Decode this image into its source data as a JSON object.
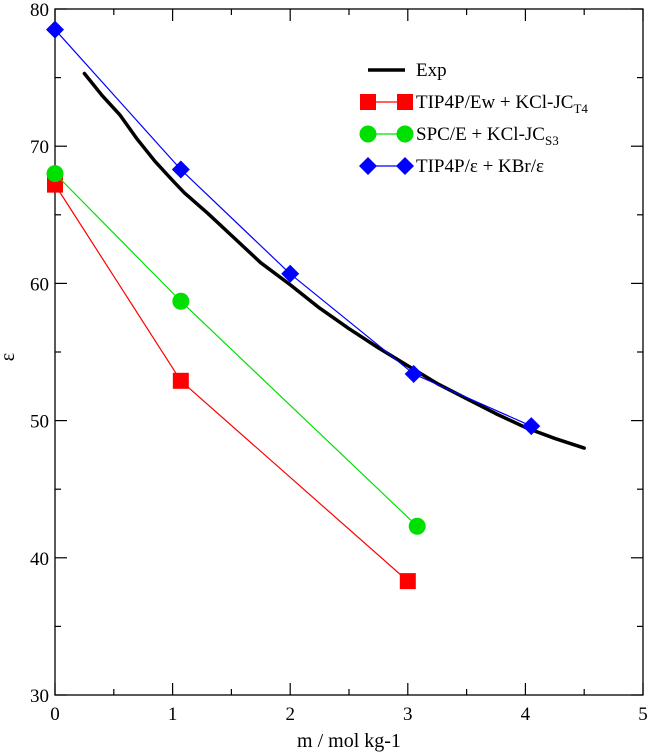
{
  "chart_data": {
    "type": "line",
    "title": "",
    "xlabel": "m /  mol kg-1",
    "ylabel": "ε",
    "xlim": [
      0,
      5
    ],
    "ylim": [
      30,
      80
    ],
    "x_ticks": [
      0,
      1,
      2,
      3,
      4,
      5
    ],
    "y_ticks": [
      30,
      40,
      50,
      60,
      70,
      80
    ],
    "x_tick_labels": [
      "0",
      "1",
      "2",
      "3",
      "4",
      "5"
    ],
    "y_tick_labels": [
      "30",
      "40",
      "50",
      "60",
      "70",
      "80"
    ],
    "grid": false,
    "legend_position": "top-right",
    "series": [
      {
        "name": "Exp",
        "label_main": "Exp",
        "label_sub": "",
        "label_tail": "",
        "color": "#000000",
        "marker": "none",
        "line_width": 3.5,
        "x": [
          0.25,
          0.4,
          0.55,
          0.7,
          0.85,
          1.0,
          1.1,
          1.3,
          1.5,
          1.75,
          2.0,
          2.25,
          2.5,
          2.75,
          3.0,
          3.25,
          3.5,
          3.75,
          4.0,
          4.25,
          4.5
        ],
        "y": [
          75.3,
          73.7,
          72.3,
          70.5,
          68.9,
          67.5,
          66.6,
          65.1,
          63.5,
          61.5,
          59.9,
          58.2,
          56.7,
          55.3,
          54.0,
          52.7,
          51.6,
          50.5,
          49.5,
          48.7,
          48.0
        ]
      },
      {
        "name": "TIP4P/Ew + KCl-JC_T4",
        "label_main": "TIP4P/Ew + KCl-JC",
        "label_sub": "T4",
        "label_tail": "",
        "color": "#ff0000",
        "marker": "square",
        "line_width": 1.2,
        "x": [
          0,
          1.07,
          3.0
        ],
        "y": [
          67.2,
          52.9,
          38.3
        ]
      },
      {
        "name": "SPC/E + KCl-JC_S3",
        "label_main": "SPC/E + KCl-JC",
        "label_sub": "S3",
        "label_tail": "",
        "color": "#00e000",
        "marker": "circle",
        "line_width": 1.2,
        "x": [
          0,
          1.07,
          3.08
        ],
        "y": [
          68.0,
          58.7,
          42.3
        ]
      },
      {
        "name": "TIP4P/ε + KBr/ε",
        "label_main": "TIP4P/ε + KBr/ε",
        "label_sub": "",
        "label_tail": "",
        "color": "#0000ff",
        "marker": "diamond",
        "line_width": 1.2,
        "x": [
          0,
          1.07,
          2.0,
          3.05,
          4.05
        ],
        "y": [
          78.5,
          68.3,
          60.7,
          53.4,
          49.6
        ]
      }
    ]
  }
}
